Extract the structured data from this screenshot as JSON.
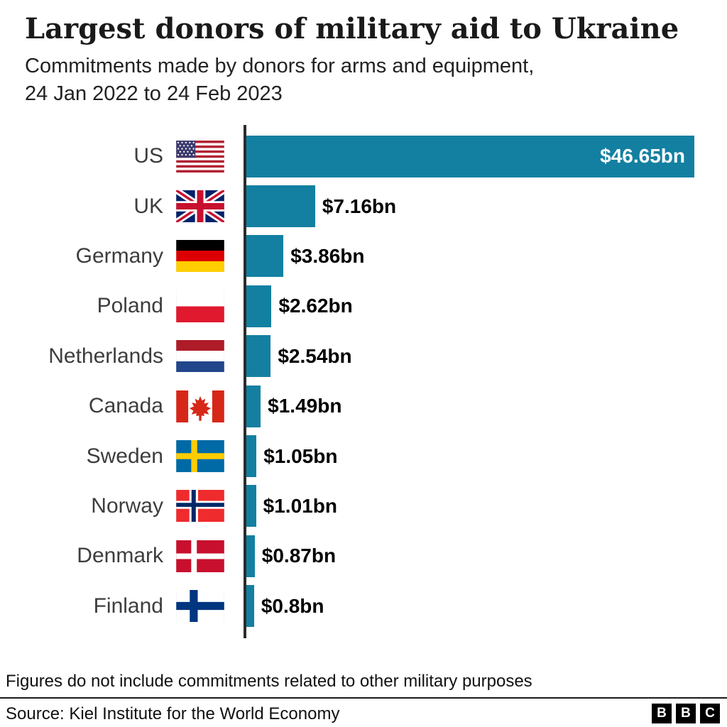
{
  "header": {
    "title": "Largest donors of military aid to Ukraine",
    "subtitle": "Commitments made by donors for arms and equipment,\n24 Jan 2022 to 24 Feb 2023"
  },
  "chart": {
    "bar_color": "#1380A1",
    "axis_color": "#2b2b2b",
    "inside_label_color": "#ffffff",
    "outside_label_color": "#000000",
    "max_value": 46.65,
    "rows": [
      {
        "country": "US",
        "flag": "us",
        "value": 46.65,
        "label": "$46.65bn",
        "label_position": "inside"
      },
      {
        "country": "UK",
        "flag": "uk",
        "value": 7.16,
        "label": "$7.16bn",
        "label_position": "outside"
      },
      {
        "country": "Germany",
        "flag": "germany",
        "value": 3.86,
        "label": "$3.86bn",
        "label_position": "outside"
      },
      {
        "country": "Poland",
        "flag": "poland",
        "value": 2.62,
        "label": "$2.62bn",
        "label_position": "outside"
      },
      {
        "country": "Netherlands",
        "flag": "netherlands",
        "value": 2.54,
        "label": "$2.54bn",
        "label_position": "outside"
      },
      {
        "country": "Canada",
        "flag": "canada",
        "value": 1.49,
        "label": "$1.49bn",
        "label_position": "outside"
      },
      {
        "country": "Sweden",
        "flag": "sweden",
        "value": 1.05,
        "label": "$1.05bn",
        "label_position": "outside"
      },
      {
        "country": "Norway",
        "flag": "norway",
        "value": 1.01,
        "label": "$1.01bn",
        "label_position": "outside"
      },
      {
        "country": "Denmark",
        "flag": "denmark",
        "value": 0.87,
        "label": "$0.87bn",
        "label_position": "outside"
      },
      {
        "country": "Finland",
        "flag": "finland",
        "value": 0.8,
        "label": "$0.8bn",
        "label_position": "outside"
      }
    ]
  },
  "chart_data": {
    "type": "bar",
    "orientation": "horizontal",
    "title": "Largest donors of military aid to Ukraine",
    "subtitle": "Commitments made by donors for arms and equipment, 24 Jan 2022 to 24 Feb 2023",
    "categories": [
      "US",
      "UK",
      "Germany",
      "Poland",
      "Netherlands",
      "Canada",
      "Sweden",
      "Norway",
      "Denmark",
      "Finland"
    ],
    "values": [
      46.65,
      7.16,
      3.86,
      2.62,
      2.54,
      1.49,
      1.05,
      1.01,
      0.87,
      0.8
    ],
    "data_labels": [
      "$46.65bn",
      "$7.16bn",
      "$3.86bn",
      "$2.62bn",
      "$2.54bn",
      "$1.49bn",
      "$1.05bn",
      "$1.01bn",
      "$0.87bn",
      "$0.8bn"
    ],
    "xlim": [
      0,
      46.65
    ],
    "grid": false,
    "legend": false,
    "bar_color": "#1380A1"
  },
  "footer": {
    "footnote": "Figures do not include commitments related to other military purposes",
    "source": "Source: Kiel Institute for the World Economy",
    "logo_letters": [
      "B",
      "B",
      "C"
    ]
  }
}
